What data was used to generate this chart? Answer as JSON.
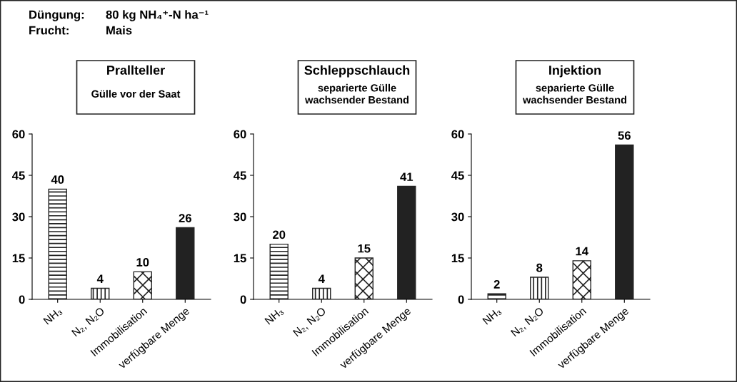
{
  "chart_data": [
    {
      "type": "bar",
      "title": "Prallteller",
      "subtitle": "Gülle vor der Saat",
      "annotations": [
        "Düngung:",
        "80 kg NH₄⁺-N ha⁻¹",
        "Frucht:",
        "Mais"
      ],
      "categories": [
        "NH₃",
        "N₂, N₂O",
        "Immobilisation",
        "verfügbare Menge"
      ],
      "values": [
        40,
        4,
        10,
        26
      ],
      "colors": [
        "#222222",
        "#222222",
        "#222222",
        "#222222"
      ],
      "ylim": [
        0,
        60
      ],
      "yticks": [
        0,
        15,
        30,
        45,
        60
      ],
      "data_labels": true,
      "grid": false,
      "legend": false
    },
    {
      "type": "bar",
      "title": "Schleppschlauch",
      "subtitle": "separierte Gülle\nwachsender Bestand",
      "categories": [
        "NH₃",
        "N₂, N₂O",
        "Immobilisation",
        "verfügbare Menge"
      ],
      "values": [
        20,
        4,
        15,
        41
      ],
      "colors": [
        "#222222",
        "#222222",
        "#222222",
        "#222222"
      ],
      "ylim": [
        0,
        60
      ],
      "yticks": [
        0,
        15,
        30,
        45,
        60
      ],
      "data_labels": true,
      "grid": false,
      "legend": false
    },
    {
      "type": "bar",
      "title": "Injektion",
      "subtitle": "separierte Gülle\nwachsender Bestand",
      "categories": [
        "NH₃",
        "N₂, N₂O",
        "Immobilisation",
        "verfügbare Menge"
      ],
      "values": [
        2,
        8,
        14,
        56
      ],
      "colors": [
        "#222222",
        "#222222",
        "#222222",
        "#222222"
      ],
      "ylim": [
        0,
        60
      ],
      "yticks": [
        0,
        15,
        30,
        45,
        60
      ],
      "data_labels": true,
      "grid": false,
      "legend": false
    }
  ]
}
